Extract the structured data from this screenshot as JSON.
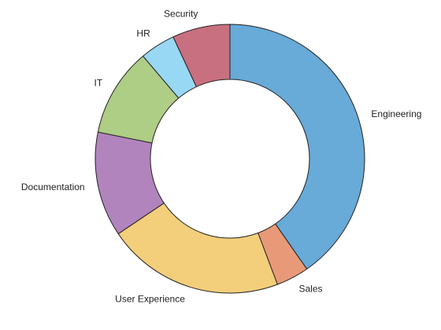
{
  "chart_data": {
    "type": "pie",
    "style": "donut",
    "title": "",
    "slices": [
      {
        "label": "Engineering",
        "value": 39.0,
        "color": "#68aad8"
      },
      {
        "label": "Sales",
        "value": 3.8,
        "color": "#e89a78"
      },
      {
        "label": "User Experience",
        "value": 20.6,
        "color": "#f3cf7b"
      },
      {
        "label": "Documentation",
        "value": 12.2,
        "color": "#b284bd"
      },
      {
        "label": "IT",
        "value": 10.3,
        "color": "#aecd85"
      },
      {
        "label": "HR",
        "value": 4.1,
        "color": "#99d8f5"
      },
      {
        "label": "Security",
        "value": 6.7,
        "color": "#c8707f"
      }
    ]
  }
}
